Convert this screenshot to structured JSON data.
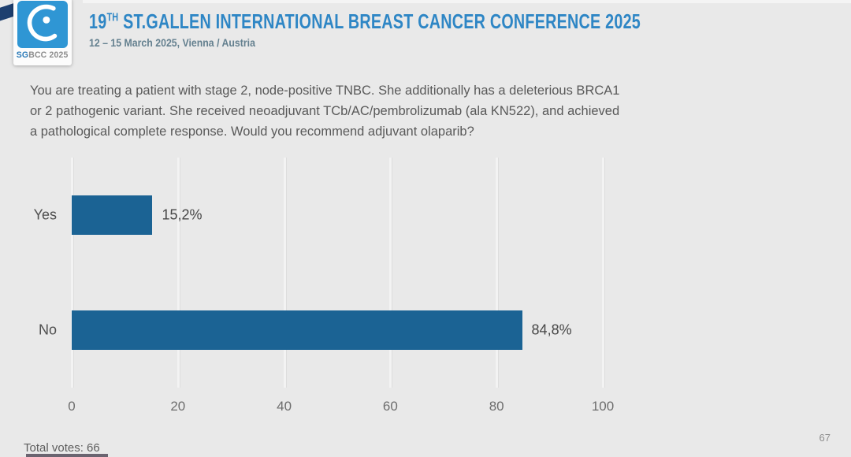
{
  "header": {
    "logo": {
      "icon": "sgbcc-breast-logo",
      "text_bold": "SG",
      "text_rest": "BCC 2025"
    },
    "title_num": "19",
    "title_sup": "TH",
    "title_rest": " ST.GALLEN INTERNATIONAL BREAST CANCER CONFERENCE 2025",
    "subtitle": "12 – 15 March 2025, Vienna / Austria",
    "title_color": "#2e86c5"
  },
  "question": {
    "lines": [
      "You are treating a patient with stage 2, node-positive TNBC.  She additionally has a deleterious BRCA1",
      "or 2 pathogenic variant.  She received neoadjuvant TCb/AC/pembrolizumab (ala KN522), and achieved",
      "a pathological complete response.  Would you recommend adjuvant olaparib?"
    ]
  },
  "chart_data": {
    "type": "bar",
    "orientation": "horizontal",
    "categories": [
      "Yes",
      "No"
    ],
    "values": [
      15.2,
      84.8
    ],
    "value_labels": [
      "15,2%",
      "84,8%"
    ],
    "xlim": [
      0,
      100
    ],
    "x_ticks": [
      "0",
      "20",
      "40",
      "60",
      "80",
      "100"
    ],
    "bar_color": "#1b6394",
    "grid": true,
    "legend": false,
    "title": "",
    "xlabel": "",
    "ylabel": ""
  },
  "footer": {
    "total_votes_label": "Total votes: 66",
    "page_number": "67"
  }
}
